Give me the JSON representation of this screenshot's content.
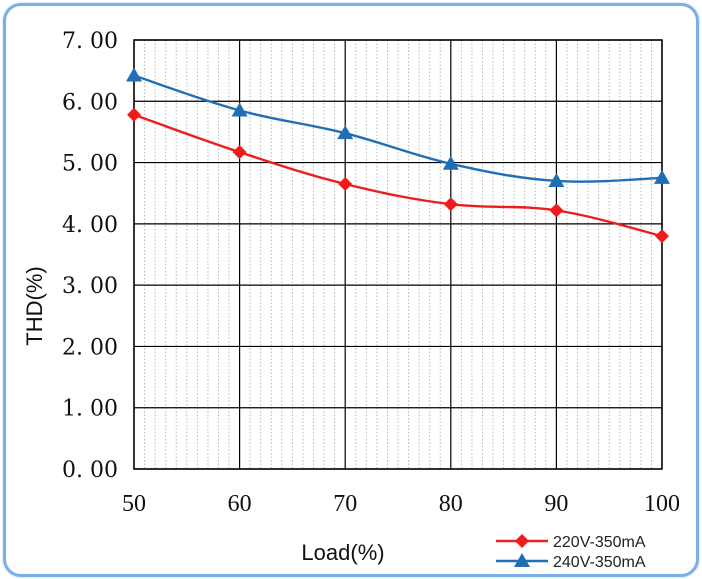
{
  "chart_data": {
    "type": "line",
    "title": "",
    "xlabel": "Load(%)",
    "ylabel": "THD(%)",
    "x": [
      50,
      60,
      70,
      80,
      90,
      100
    ],
    "x_tick_labels": [
      "50",
      "60",
      "70",
      "80",
      "90",
      "100"
    ],
    "y_tick_labels": [
      "0. 00",
      "1. 00",
      "2. 00",
      "3. 00",
      "4. 00",
      "5. 00",
      "6. 00",
      "7. 00"
    ],
    "xlim": [
      50,
      100
    ],
    "ylim": [
      0,
      7
    ],
    "grid": true,
    "minor_grid": "dotted vertical",
    "legend_position": "bottom-right",
    "series": [
      {
        "name": "220V-350mA",
        "values": [
          5.78,
          5.17,
          4.65,
          4.32,
          4.22,
          3.8
        ],
        "color": "#ee1c1c",
        "marker": "diamond"
      },
      {
        "name": "240V-350mA",
        "values": [
          6.42,
          5.85,
          5.48,
          4.98,
          4.7,
          4.75
        ],
        "color": "#1f6fb5",
        "marker": "triangle"
      }
    ]
  },
  "colors": {
    "frame_border": "#7ab0e8",
    "grid_major": "#000000",
    "grid_minor": "#b8b8b8"
  }
}
